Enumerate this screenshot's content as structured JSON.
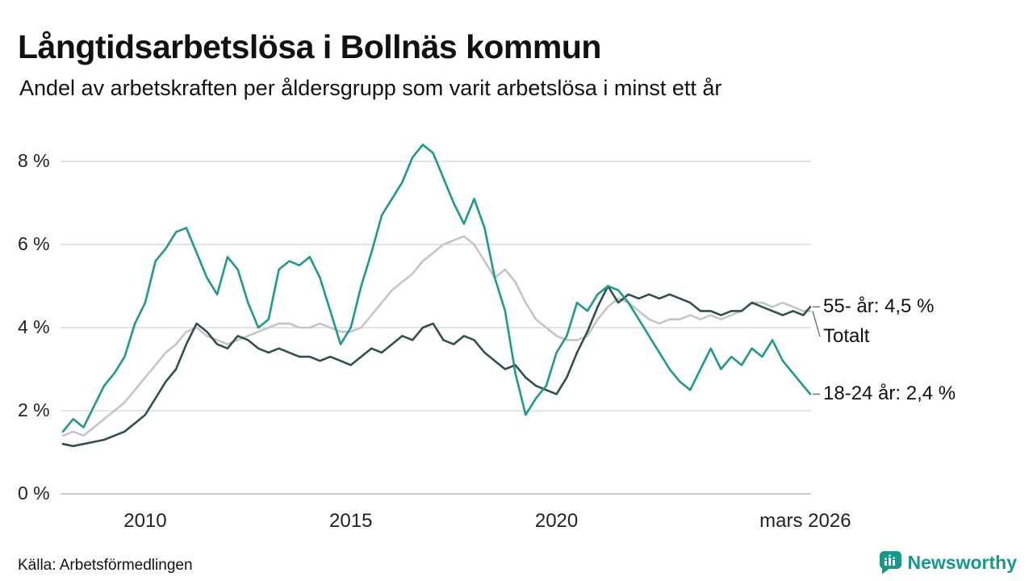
{
  "header": {
    "title": "Långtidsarbetslösa i Bollnäs kommun",
    "subtitle": "Andel av arbetskraften per åldersgrupp som varit arbetslösa i minst ett år"
  },
  "footer": {
    "source": "Källa: Arbetsförmedlingen",
    "brand": "Newsworthy",
    "brand_color": "#17988a",
    "brand_icon": "bar-chart-speech-bubble-icon"
  },
  "chart_data": {
    "type": "line",
    "title": "Långtidsarbetslösa i Bollnäs kommun",
    "subtitle": "Andel av arbetskraften per åldersgrupp som varit arbetslösa i minst ett år",
    "xlabel": "",
    "ylabel": "",
    "grid": true,
    "legend_position": "right-annotations",
    "ylim": [
      0,
      8.6
    ],
    "x_range": [
      2008.0,
      2026.17
    ],
    "yticks": [
      {
        "value": 0,
        "label": "0 %"
      },
      {
        "value": 2,
        "label": "2 %"
      },
      {
        "value": 4,
        "label": "4 %"
      },
      {
        "value": 6,
        "label": "6 %"
      },
      {
        "value": 8,
        "label": "8 %"
      }
    ],
    "xticks": [
      {
        "year": 2010,
        "label": "2010"
      },
      {
        "year": 2015,
        "label": "2015"
      },
      {
        "year": 2020,
        "label": "2020"
      },
      {
        "year": 2026.05,
        "label": "mars 2026"
      }
    ],
    "series": [
      {
        "name": "Totalt",
        "color": "#c5c3ce",
        "points": [
          [
            2008.0,
            1.4
          ],
          [
            2008.25,
            1.5
          ],
          [
            2008.5,
            1.4
          ],
          [
            2008.75,
            1.6
          ],
          [
            2009.0,
            1.8
          ],
          [
            2009.25,
            2.0
          ],
          [
            2009.5,
            2.2
          ],
          [
            2009.75,
            2.5
          ],
          [
            2010.0,
            2.8
          ],
          [
            2010.25,
            3.1
          ],
          [
            2010.5,
            3.4
          ],
          [
            2010.75,
            3.6
          ],
          [
            2011.0,
            3.9
          ],
          [
            2011.25,
            4.0
          ],
          [
            2011.5,
            3.8
          ],
          [
            2011.75,
            3.7
          ],
          [
            2012.0,
            3.6
          ],
          [
            2012.25,
            3.7
          ],
          [
            2012.5,
            3.8
          ],
          [
            2012.75,
            3.9
          ],
          [
            2013.0,
            4.0
          ],
          [
            2013.25,
            4.1
          ],
          [
            2013.5,
            4.1
          ],
          [
            2013.75,
            4.0
          ],
          [
            2014.0,
            4.0
          ],
          [
            2014.25,
            4.1
          ],
          [
            2014.5,
            4.0
          ],
          [
            2014.75,
            3.9
          ],
          [
            2015.0,
            3.9
          ],
          [
            2015.25,
            4.0
          ],
          [
            2015.5,
            4.3
          ],
          [
            2015.75,
            4.6
          ],
          [
            2016.0,
            4.9
          ],
          [
            2016.25,
            5.1
          ],
          [
            2016.5,
            5.3
          ],
          [
            2016.75,
            5.6
          ],
          [
            2017.0,
            5.8
          ],
          [
            2017.25,
            6.0
          ],
          [
            2017.5,
            6.1
          ],
          [
            2017.75,
            6.2
          ],
          [
            2018.0,
            6.0
          ],
          [
            2018.25,
            5.6
          ],
          [
            2018.5,
            5.2
          ],
          [
            2018.75,
            5.4
          ],
          [
            2019.0,
            5.1
          ],
          [
            2019.25,
            4.6
          ],
          [
            2019.5,
            4.2
          ],
          [
            2019.75,
            4.0
          ],
          [
            2020.0,
            3.8
          ],
          [
            2020.25,
            3.7
          ],
          [
            2020.5,
            3.7
          ],
          [
            2020.75,
            3.8
          ],
          [
            2021.0,
            4.2
          ],
          [
            2021.25,
            4.5
          ],
          [
            2021.5,
            4.7
          ],
          [
            2021.75,
            4.6
          ],
          [
            2022.0,
            4.4
          ],
          [
            2022.25,
            4.2
          ],
          [
            2022.5,
            4.1
          ],
          [
            2022.75,
            4.2
          ],
          [
            2023.0,
            4.2
          ],
          [
            2023.25,
            4.3
          ],
          [
            2023.5,
            4.2
          ],
          [
            2023.75,
            4.3
          ],
          [
            2024.0,
            4.2
          ],
          [
            2024.25,
            4.3
          ],
          [
            2024.5,
            4.4
          ],
          [
            2024.75,
            4.6
          ],
          [
            2025.0,
            4.6
          ],
          [
            2025.25,
            4.5
          ],
          [
            2025.5,
            4.6
          ],
          [
            2025.75,
            4.5
          ],
          [
            2026.0,
            4.4
          ],
          [
            2026.17,
            4.4
          ]
        ]
      },
      {
        "name": "55- år",
        "color": "#2f5149",
        "points": [
          [
            2008.0,
            1.2
          ],
          [
            2008.25,
            1.15
          ],
          [
            2008.5,
            1.2
          ],
          [
            2008.75,
            1.25
          ],
          [
            2009.0,
            1.3
          ],
          [
            2009.25,
            1.4
          ],
          [
            2009.5,
            1.5
          ],
          [
            2009.75,
            1.7
          ],
          [
            2010.0,
            1.9
          ],
          [
            2010.25,
            2.3
          ],
          [
            2010.5,
            2.7
          ],
          [
            2010.75,
            3.0
          ],
          [
            2011.0,
            3.6
          ],
          [
            2011.25,
            4.1
          ],
          [
            2011.5,
            3.9
          ],
          [
            2011.75,
            3.6
          ],
          [
            2012.0,
            3.5
          ],
          [
            2012.25,
            3.8
          ],
          [
            2012.5,
            3.7
          ],
          [
            2012.75,
            3.5
          ],
          [
            2013.0,
            3.4
          ],
          [
            2013.25,
            3.5
          ],
          [
            2013.5,
            3.4
          ],
          [
            2013.75,
            3.3
          ],
          [
            2014.0,
            3.3
          ],
          [
            2014.25,
            3.2
          ],
          [
            2014.5,
            3.3
          ],
          [
            2014.75,
            3.2
          ],
          [
            2015.0,
            3.1
          ],
          [
            2015.25,
            3.3
          ],
          [
            2015.5,
            3.5
          ],
          [
            2015.75,
            3.4
          ],
          [
            2016.0,
            3.6
          ],
          [
            2016.25,
            3.8
          ],
          [
            2016.5,
            3.7
          ],
          [
            2016.75,
            4.0
          ],
          [
            2017.0,
            4.1
          ],
          [
            2017.25,
            3.7
          ],
          [
            2017.5,
            3.6
          ],
          [
            2017.75,
            3.8
          ],
          [
            2018.0,
            3.7
          ],
          [
            2018.25,
            3.4
          ],
          [
            2018.5,
            3.2
          ],
          [
            2018.75,
            3.0
          ],
          [
            2019.0,
            3.1
          ],
          [
            2019.25,
            2.8
          ],
          [
            2019.5,
            2.6
          ],
          [
            2019.75,
            2.5
          ],
          [
            2020.0,
            2.4
          ],
          [
            2020.25,
            2.8
          ],
          [
            2020.5,
            3.4
          ],
          [
            2020.75,
            3.9
          ],
          [
            2021.0,
            4.5
          ],
          [
            2021.25,
            5.0
          ],
          [
            2021.5,
            4.6
          ],
          [
            2021.75,
            4.8
          ],
          [
            2022.0,
            4.7
          ],
          [
            2022.25,
            4.8
          ],
          [
            2022.5,
            4.7
          ],
          [
            2022.75,
            4.8
          ],
          [
            2023.0,
            4.7
          ],
          [
            2023.25,
            4.6
          ],
          [
            2023.5,
            4.4
          ],
          [
            2023.75,
            4.4
          ],
          [
            2024.0,
            4.3
          ],
          [
            2024.25,
            4.4
          ],
          [
            2024.5,
            4.4
          ],
          [
            2024.75,
            4.6
          ],
          [
            2025.0,
            4.5
          ],
          [
            2025.25,
            4.4
          ],
          [
            2025.5,
            4.3
          ],
          [
            2025.75,
            4.4
          ],
          [
            2026.0,
            4.3
          ],
          [
            2026.17,
            4.5
          ]
        ]
      },
      {
        "name": "18-24 år",
        "color": "#1d9a8a",
        "points": [
          [
            2008.0,
            1.5
          ],
          [
            2008.25,
            1.8
          ],
          [
            2008.5,
            1.6
          ],
          [
            2008.75,
            2.1
          ],
          [
            2009.0,
            2.6
          ],
          [
            2009.25,
            2.9
          ],
          [
            2009.5,
            3.3
          ],
          [
            2009.75,
            4.1
          ],
          [
            2010.0,
            4.6
          ],
          [
            2010.25,
            5.6
          ],
          [
            2010.5,
            5.9
          ],
          [
            2010.75,
            6.3
          ],
          [
            2011.0,
            6.4
          ],
          [
            2011.25,
            5.8
          ],
          [
            2011.5,
            5.2
          ],
          [
            2011.75,
            4.8
          ],
          [
            2012.0,
            5.7
          ],
          [
            2012.25,
            5.4
          ],
          [
            2012.5,
            4.6
          ],
          [
            2012.75,
            4.0
          ],
          [
            2013.0,
            4.2
          ],
          [
            2013.25,
            5.4
          ],
          [
            2013.5,
            5.6
          ],
          [
            2013.75,
            5.5
          ],
          [
            2014.0,
            5.7
          ],
          [
            2014.25,
            5.2
          ],
          [
            2014.5,
            4.4
          ],
          [
            2014.75,
            3.6
          ],
          [
            2015.0,
            4.0
          ],
          [
            2015.25,
            5.0
          ],
          [
            2015.5,
            5.8
          ],
          [
            2015.75,
            6.7
          ],
          [
            2016.0,
            7.1
          ],
          [
            2016.25,
            7.5
          ],
          [
            2016.5,
            8.1
          ],
          [
            2016.75,
            8.4
          ],
          [
            2017.0,
            8.2
          ],
          [
            2017.25,
            7.6
          ],
          [
            2017.5,
            7.0
          ],
          [
            2017.75,
            6.5
          ],
          [
            2018.0,
            7.1
          ],
          [
            2018.25,
            6.4
          ],
          [
            2018.5,
            5.2
          ],
          [
            2018.75,
            4.4
          ],
          [
            2019.0,
            2.9
          ],
          [
            2019.25,
            1.9
          ],
          [
            2019.5,
            2.3
          ],
          [
            2019.75,
            2.6
          ],
          [
            2020.0,
            3.4
          ],
          [
            2020.25,
            3.8
          ],
          [
            2020.5,
            4.6
          ],
          [
            2020.75,
            4.4
          ],
          [
            2021.0,
            4.8
          ],
          [
            2021.25,
            5.0
          ],
          [
            2021.5,
            4.9
          ],
          [
            2021.75,
            4.6
          ],
          [
            2022.0,
            4.2
          ],
          [
            2022.25,
            3.8
          ],
          [
            2022.5,
            3.4
          ],
          [
            2022.75,
            3.0
          ],
          [
            2023.0,
            2.7
          ],
          [
            2023.25,
            2.5
          ],
          [
            2023.5,
            3.0
          ],
          [
            2023.75,
            3.5
          ],
          [
            2024.0,
            3.0
          ],
          [
            2024.25,
            3.3
          ],
          [
            2024.5,
            3.1
          ],
          [
            2024.75,
            3.5
          ],
          [
            2025.0,
            3.3
          ],
          [
            2025.25,
            3.7
          ],
          [
            2025.5,
            3.2
          ],
          [
            2025.75,
            2.9
          ],
          [
            2026.0,
            2.6
          ],
          [
            2026.17,
            2.4
          ]
        ]
      }
    ],
    "annotations": [
      {
        "text": "55- år: 4,5 %",
        "value": 4.5,
        "series": "55- år"
      },
      {
        "text": "Totalt",
        "value": 4.4,
        "series": "Totalt"
      },
      {
        "text": "18-24 år: 2,4 %",
        "value": 2.4,
        "series": "18-24 år"
      }
    ]
  }
}
